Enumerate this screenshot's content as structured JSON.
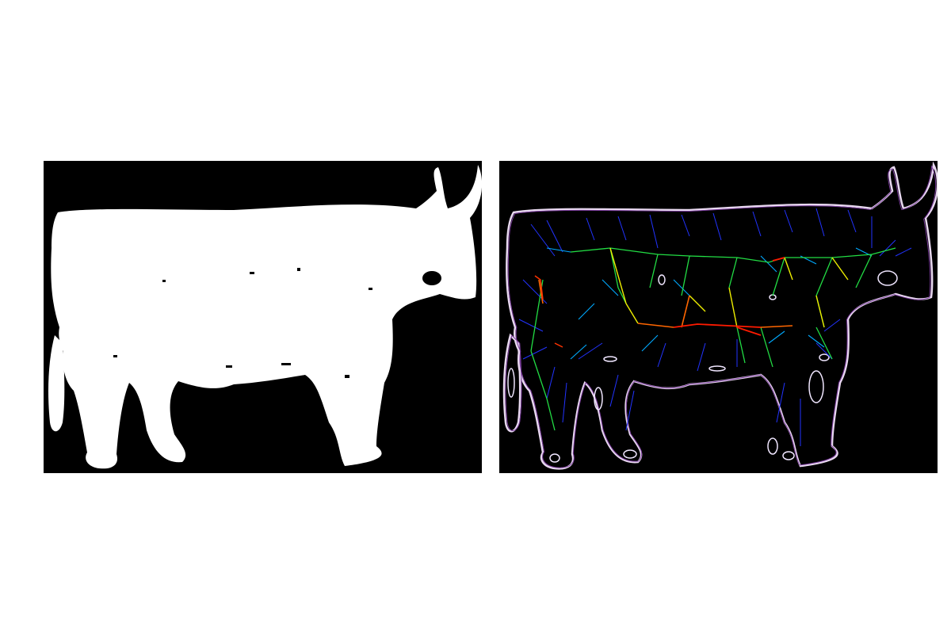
{
  "figure": {
    "panels": [
      {
        "id": "binary-mask",
        "description_icon": "cow-silhouette-icon",
        "background": "#000000",
        "foreground": "#ffffff"
      },
      {
        "id": "distance-skeleton",
        "description_icon": "cow-skeleton-icon",
        "background": "#000000",
        "outline": "#e8d8f0",
        "palette": [
          "#0000ff",
          "#1a4dff",
          "#00aaff",
          "#00ff66",
          "#66ff00",
          "#ffff00",
          "#ffaa00",
          "#ff3300",
          "#ff0000",
          "#8800aa"
        ]
      }
    ]
  }
}
